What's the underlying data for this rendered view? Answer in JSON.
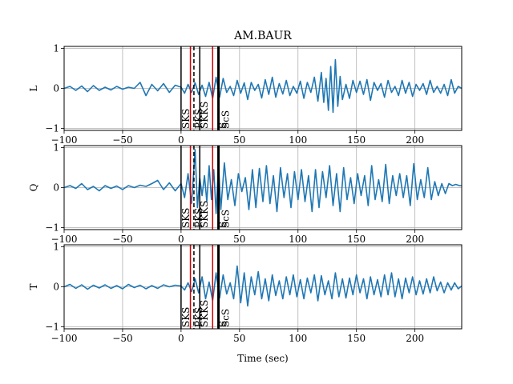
{
  "chart_data": {
    "type": "line",
    "title": "AM.BAUR",
    "xlabel": "Time (sec)",
    "xlim": [
      -100,
      240
    ],
    "ylim": [
      -1.05,
      1.05
    ],
    "x_ticks": [
      -100,
      -50,
      0,
      50,
      100,
      150,
      200
    ],
    "x_tick_labels": [
      "−100",
      "−50",
      "0",
      "50",
      "100",
      "150",
      "200"
    ],
    "y_ticks": [
      -1,
      0,
      1
    ],
    "y_tick_labels": [
      "−1",
      "0",
      "1"
    ],
    "grid": true,
    "color": "#1f77b4",
    "phase_markers": [
      {
        "t": 0,
        "color": "#000000",
        "style": "solid",
        "label": "SKS"
      },
      {
        "t": 8,
        "color": "#d00000",
        "style": "solid",
        "label": ""
      },
      {
        "t": 11,
        "color": "#000000",
        "style": "dashed",
        "label": "PKS"
      },
      {
        "t": 16,
        "color": "#000000",
        "style": "solid",
        "label": "SKKS"
      },
      {
        "t": 27,
        "color": "#d00000",
        "style": "solid",
        "label": ""
      },
      {
        "t": 32,
        "color": "#000000",
        "style": "thick",
        "label": "S"
      },
      {
        "t": 34,
        "color": "#000000",
        "style": "none",
        "label": "ScS"
      }
    ],
    "panels": [
      {
        "component": "L",
        "x": [
          -100,
          -95,
          -90,
          -85,
          -80,
          -75,
          -70,
          -65,
          -60,
          -55,
          -50,
          -45,
          -40,
          -35,
          -30,
          -25,
          -20,
          -15,
          -10,
          -5,
          0,
          3,
          6,
          9,
          12,
          15,
          18,
          21,
          24,
          27,
          30,
          33,
          36,
          39,
          42,
          45,
          48,
          51,
          54,
          57,
          60,
          63,
          66,
          69,
          72,
          75,
          78,
          81,
          84,
          87,
          90,
          93,
          96,
          99,
          102,
          105,
          108,
          111,
          114,
          117,
          120,
          122,
          124,
          126,
          128,
          130,
          132,
          134,
          136,
          138,
          141,
          144,
          147,
          150,
          153,
          156,
          159,
          162,
          165,
          168,
          171,
          174,
          177,
          180,
          183,
          186,
          189,
          192,
          195,
          198,
          201,
          204,
          207,
          210,
          213,
          216,
          219,
          222,
          225,
          228,
          231,
          234,
          237,
          240
        ],
        "y": [
          0,
          0.05,
          -0.05,
          0.06,
          -0.08,
          0.07,
          -0.05,
          0.03,
          -0.04,
          0.05,
          -0.02,
          0.03,
          0,
          0.15,
          -0.18,
          0.1,
          -0.06,
          0.12,
          -0.1,
          0.08,
          0.03,
          -0.12,
          0.1,
          -0.1,
          0.14,
          -0.15,
          0.08,
          -0.2,
          0.15,
          -0.25,
          0.28,
          -0.22,
          0.25,
          -0.1,
          0.05,
          -0.18,
          0.2,
          -0.12,
          0.14,
          -0.28,
          0.15,
          -0.05,
          0.1,
          -0.24,
          0.22,
          -0.15,
          0.28,
          -0.22,
          0.12,
          -0.14,
          0.2,
          -0.18,
          0.05,
          -0.12,
          0.18,
          -0.25,
          0.15,
          -0.1,
          0.28,
          -0.32,
          0.4,
          -0.35,
          0.25,
          -0.55,
          0.55,
          -0.6,
          0.72,
          -0.45,
          0.3,
          -0.28,
          0.1,
          -0.25,
          0.2,
          -0.1,
          0.18,
          -0.15,
          0.22,
          -0.3,
          0.15,
          -0.05,
          0.12,
          -0.22,
          0.2,
          -0.1,
          0.05,
          -0.18,
          0.2,
          -0.12,
          0.15,
          -0.2,
          0.1,
          -0.05,
          0.12,
          -0.15,
          0.2,
          -0.1,
          0.05,
          -0.12,
          0.1,
          -0.18,
          0.22,
          -0.12,
          0.05,
          0
        ]
      },
      {
        "component": "Q",
        "x": [
          -100,
          -95,
          -90,
          -85,
          -80,
          -75,
          -70,
          -65,
          -60,
          -55,
          -50,
          -45,
          -40,
          -35,
          -30,
          -25,
          -20,
          -15,
          -10,
          -5,
          0,
          3,
          6,
          9,
          12,
          14,
          16,
          18,
          20,
          22,
          24,
          26,
          28,
          30,
          32,
          34,
          37,
          40,
          43,
          46,
          49,
          52,
          55,
          58,
          61,
          64,
          67,
          70,
          73,
          76,
          79,
          82,
          85,
          88,
          91,
          94,
          97,
          100,
          103,
          106,
          109,
          112,
          115,
          118,
          121,
          124,
          127,
          130,
          133,
          136,
          139,
          142,
          145,
          148,
          151,
          154,
          157,
          160,
          163,
          166,
          169,
          172,
          175,
          178,
          181,
          184,
          187,
          190,
          193,
          196,
          199,
          202,
          205,
          208,
          211,
          214,
          217,
          220,
          223,
          226,
          229,
          232,
          235,
          238,
          240
        ],
        "y": [
          0,
          0.05,
          -0.02,
          0.1,
          -0.05,
          0.03,
          -0.08,
          0.05,
          -0.02,
          0.04,
          -0.05,
          0.05,
          0,
          0.06,
          0.03,
          0.1,
          0.18,
          -0.05,
          0.12,
          -0.08,
          0.1,
          -0.25,
          0.35,
          -0.4,
          0.95,
          -0.5,
          0.25,
          -0.2,
          0.3,
          -0.35,
          0.55,
          -0.3,
          0.45,
          -0.65,
          0.6,
          -0.55,
          0.62,
          -0.3,
          0.2,
          -0.45,
          0.35,
          -0.1,
          0.25,
          -0.55,
          0.45,
          -0.5,
          0.48,
          -0.35,
          0.55,
          -0.4,
          0.3,
          -0.6,
          0.5,
          -0.25,
          0.35,
          -0.5,
          0.4,
          -0.3,
          0.45,
          -0.35,
          0.3,
          -0.6,
          0.45,
          -0.5,
          0.4,
          -0.25,
          0.55,
          -0.45,
          0.35,
          -0.6,
          0.5,
          -0.3,
          0.25,
          -0.4,
          0.35,
          -0.2,
          0.3,
          -0.45,
          0.55,
          -0.3,
          0.2,
          -0.35,
          0.58,
          -0.4,
          0.3,
          -0.2,
          0.35,
          -0.25,
          0.3,
          -0.45,
          0.6,
          -0.3,
          0.2,
          -0.25,
          0.5,
          -0.3,
          0.15,
          -0.2,
          0.1,
          -0.15,
          0.1,
          0.05,
          0.08,
          0.05,
          0.05
        ]
      },
      {
        "component": "T",
        "x": [
          -100,
          -95,
          -90,
          -85,
          -80,
          -75,
          -70,
          -65,
          -60,
          -55,
          -50,
          -45,
          -40,
          -35,
          -30,
          -25,
          -20,
          -15,
          -10,
          -5,
          0,
          3,
          6,
          9,
          12,
          15,
          18,
          21,
          24,
          27,
          30,
          33,
          36,
          39,
          42,
          45,
          48,
          51,
          54,
          57,
          60,
          63,
          66,
          69,
          72,
          75,
          78,
          81,
          84,
          87,
          90,
          93,
          96,
          99,
          102,
          105,
          108,
          111,
          114,
          117,
          120,
          123,
          126,
          129,
          132,
          135,
          138,
          141,
          144,
          147,
          150,
          153,
          156,
          159,
          162,
          165,
          168,
          171,
          174,
          177,
          180,
          183,
          186,
          189,
          192,
          195,
          198,
          201,
          204,
          207,
          210,
          213,
          216,
          219,
          222,
          225,
          228,
          231,
          234,
          237,
          240
        ],
        "y": [
          0,
          0.06,
          -0.04,
          0.05,
          -0.06,
          0.04,
          -0.03,
          0.05,
          -0.04,
          0.03,
          -0.05,
          0.06,
          -0.02,
          0.04,
          -0.05,
          0.03,
          -0.04,
          0.05,
          0,
          0.04,
          0.02,
          -0.08,
          0.1,
          -0.12,
          0.2,
          -0.15,
          0.25,
          -0.3,
          0.12,
          -0.35,
          0.35,
          -0.28,
          0.3,
          -0.18,
          0.1,
          -0.3,
          0.52,
          -0.4,
          0.35,
          -0.48,
          0.25,
          -0.2,
          0.38,
          -0.3,
          0.2,
          -0.35,
          0.3,
          -0.22,
          0.15,
          -0.3,
          0.25,
          -0.2,
          0.3,
          -0.25,
          0.18,
          -0.3,
          0.22,
          -0.15,
          0.3,
          -0.35,
          0.28,
          -0.2,
          0.15,
          -0.3,
          0.35,
          -0.25,
          0.2,
          -0.28,
          0.22,
          -0.2,
          0.3,
          -0.15,
          0.2,
          -0.3,
          0.25,
          -0.2,
          0.18,
          -0.25,
          0.3,
          -0.2,
          0.35,
          -0.25,
          0.2,
          -0.3,
          0.22,
          -0.15,
          0.25,
          -0.2,
          0.15,
          -0.18,
          0.2,
          -0.15,
          0.25,
          -0.1,
          0.12,
          -0.15,
          0.1,
          -0.08,
          0.1,
          -0.05,
          0.02
        ]
      }
    ]
  }
}
